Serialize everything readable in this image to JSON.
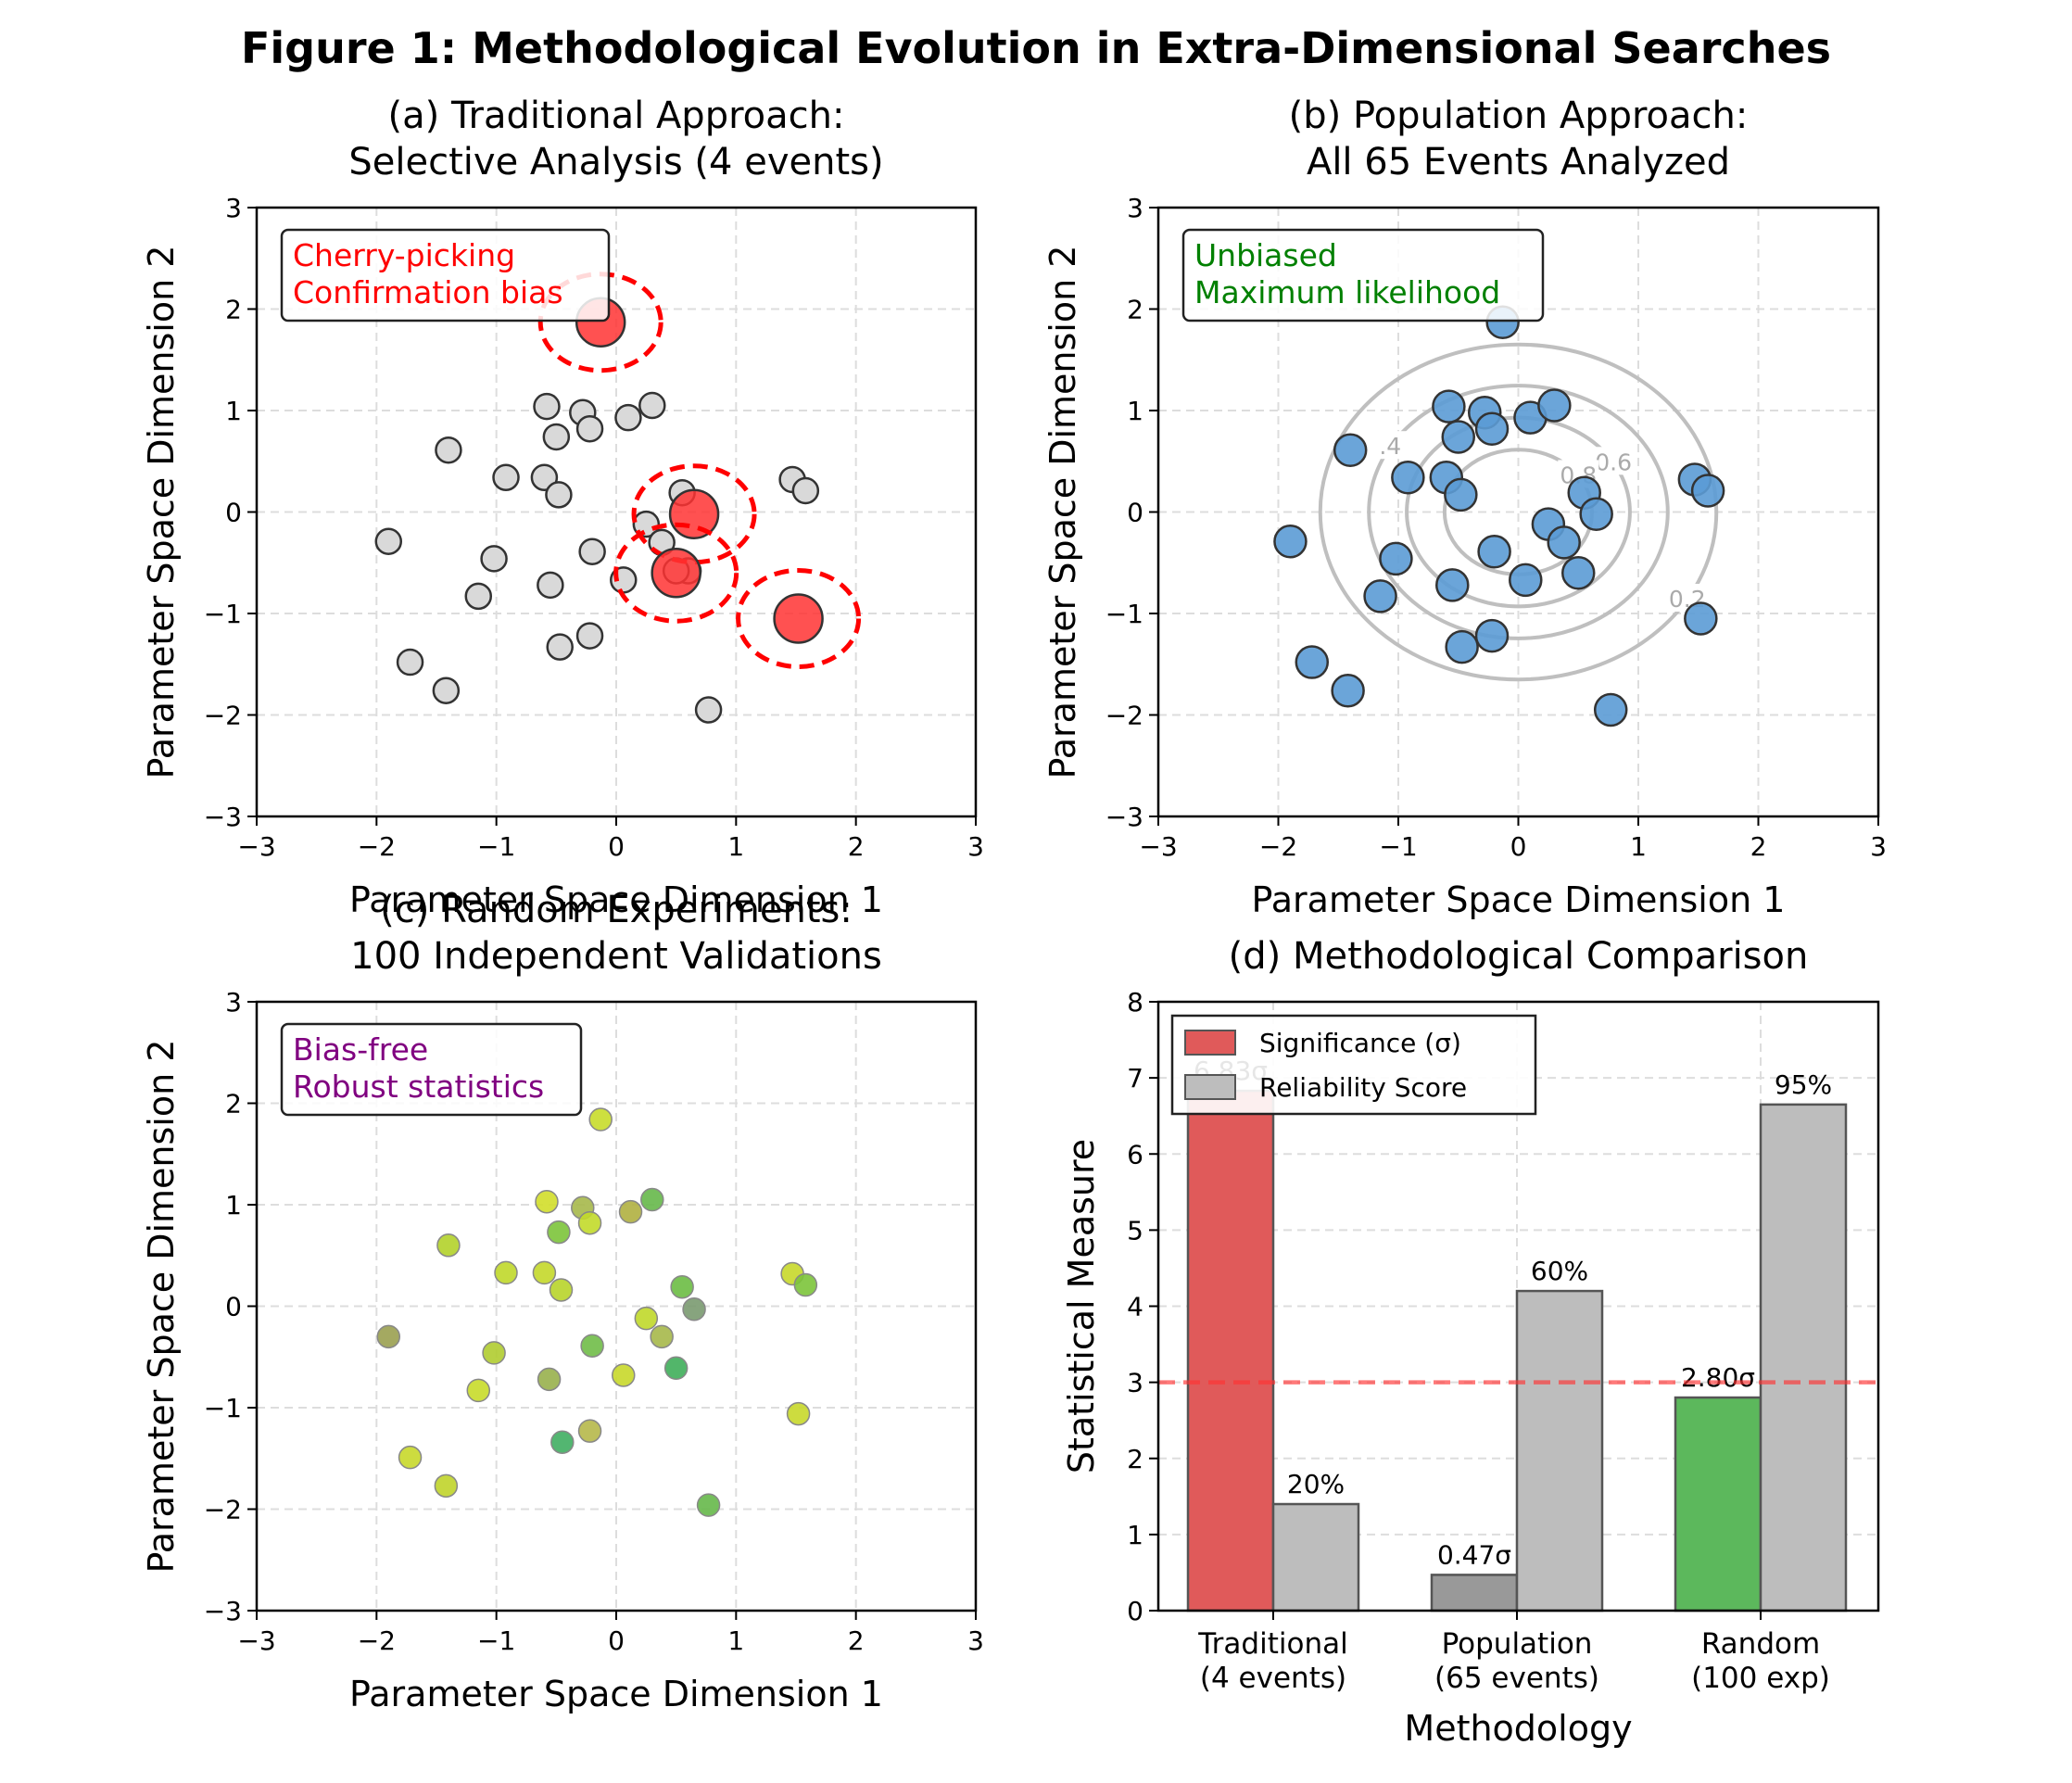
{
  "figure_title": "Figure 1: Methodological Evolution in Extra-Dimensional Searches",
  "colors": {
    "gray_point": "#d9d9d9",
    "red": "#ff3333",
    "blue": "#5b9bd5",
    "contour": "#bfbfbf",
    "sig_traditional": "#e05a5a",
    "sig_population": "#999999",
    "sig_random": "#5cb85c",
    "reliability": "#bdbdbd",
    "box_text_a": "#ff0000",
    "box_text_b": "#008000",
    "box_text_c": "#800080"
  },
  "chart_data": [
    {
      "id": "a",
      "type": "scatter",
      "title": "(a) Traditional Approach:\nSelective Analysis (4 events)",
      "xlabel": "Parameter Space Dimension 1",
      "ylabel": "Parameter Space Dimension 2",
      "xlim": [
        -3,
        3
      ],
      "ylim": [
        -3,
        3
      ],
      "xticks": [
        "−3",
        "−2",
        "−1",
        "0",
        "1",
        "2",
        "3"
      ],
      "yticks": [
        "−3",
        "−2",
        "−1",
        "0",
        "1",
        "2",
        "3"
      ],
      "grid": true,
      "annotation": [
        "Cherry-picking",
        "Confirmation bias"
      ],
      "background_points": [
        [
          -1.4,
          0.61
        ],
        [
          -0.92,
          0.34
        ],
        [
          -0.58,
          1.04
        ],
        [
          -0.5,
          0.74
        ],
        [
          -0.28,
          0.98
        ],
        [
          -0.22,
          0.82
        ],
        [
          0.1,
          0.93
        ],
        [
          0.3,
          1.05
        ],
        [
          -0.6,
          0.34
        ],
        [
          -0.48,
          0.17
        ],
        [
          0.55,
          0.19
        ],
        [
          1.47,
          0.32
        ],
        [
          1.58,
          0.21
        ],
        [
          -1.9,
          -0.29
        ],
        [
          -1.02,
          -0.46
        ],
        [
          -0.2,
          -0.39
        ],
        [
          0.25,
          -0.12
        ],
        [
          0.38,
          -0.3
        ],
        [
          -1.15,
          -0.83
        ],
        [
          -0.55,
          -0.72
        ],
        [
          0.06,
          -0.67
        ],
        [
          0.6,
          -0.58
        ],
        [
          -0.47,
          -1.33
        ],
        [
          -0.22,
          -1.22
        ],
        [
          -1.72,
          -1.48
        ],
        [
          -1.42,
          -1.76
        ],
        [
          0.77,
          -1.95
        ],
        [
          0.5,
          -0.58
        ]
      ],
      "selected_points": [
        [
          -0.13,
          1.87
        ],
        [
          0.65,
          -0.02
        ],
        [
          0.5,
          -0.6
        ],
        [
          1.52,
          -1.05
        ]
      ]
    },
    {
      "id": "b",
      "type": "scatter",
      "title": "(b) Population Approach:\nAll 65 Events Analyzed",
      "xlabel": "Parameter Space Dimension 1",
      "ylabel": "Parameter Space Dimension 2",
      "xlim": [
        -3,
        3
      ],
      "ylim": [
        -3,
        3
      ],
      "xticks": [
        "−3",
        "−2",
        "−1",
        "0",
        "1",
        "2",
        "3"
      ],
      "yticks": [
        "−3",
        "−2",
        "−1",
        "0",
        "1",
        "2",
        "3"
      ],
      "grid": true,
      "annotation": [
        "Unbiased",
        "Maximum likelihood"
      ],
      "contour_levels": [
        0.2,
        0.4,
        0.6,
        0.8
      ],
      "contour_labels": [
        "0.2",
        ".4",
        "0.6",
        "0.8"
      ],
      "points": [
        [
          -0.13,
          1.87
        ],
        [
          -1.4,
          0.61
        ],
        [
          -0.92,
          0.34
        ],
        [
          -0.58,
          1.04
        ],
        [
          -0.5,
          0.74
        ],
        [
          -0.28,
          0.98
        ],
        [
          -0.22,
          0.82
        ],
        [
          0.1,
          0.93
        ],
        [
          0.3,
          1.05
        ],
        [
          -0.6,
          0.34
        ],
        [
          -0.48,
          0.17
        ],
        [
          0.55,
          0.19
        ],
        [
          0.65,
          -0.02
        ],
        [
          1.47,
          0.32
        ],
        [
          1.58,
          0.21
        ],
        [
          -1.9,
          -0.29
        ],
        [
          -1.02,
          -0.46
        ],
        [
          -0.2,
          -0.39
        ],
        [
          0.25,
          -0.12
        ],
        [
          0.38,
          -0.3
        ],
        [
          -1.15,
          -0.83
        ],
        [
          -0.55,
          -0.72
        ],
        [
          0.06,
          -0.67
        ],
        [
          0.5,
          -0.6
        ],
        [
          -0.47,
          -1.33
        ],
        [
          -0.22,
          -1.22
        ],
        [
          -1.72,
          -1.48
        ],
        [
          -1.42,
          -1.76
        ],
        [
          0.77,
          -1.95
        ],
        [
          1.52,
          -1.05
        ]
      ]
    },
    {
      "id": "c",
      "type": "scatter",
      "title": "(c) Random Experiments:\n100 Independent Validations",
      "xlabel": "Parameter Space Dimension 1",
      "ylabel": "Parameter Space Dimension 2",
      "xlim": [
        -3,
        3
      ],
      "ylim": [
        -3,
        3
      ],
      "xticks": [
        "−3",
        "−2",
        "−1",
        "0",
        "1",
        "2",
        "3"
      ],
      "yticks": [
        "−3",
        "−2",
        "−1",
        "0",
        "1",
        "2",
        "3"
      ],
      "grid": true,
      "annotation": [
        "Bias-free",
        "Robust statistics"
      ],
      "points": [
        {
          "x": -0.13,
          "y": 1.84,
          "c": "#c8dc2a"
        },
        {
          "x": -1.4,
          "y": 0.6,
          "c": "#b3d22a"
        },
        {
          "x": -0.92,
          "y": 0.33,
          "c": "#c0d82a"
        },
        {
          "x": -0.58,
          "y": 1.03,
          "c": "#d2de2a"
        },
        {
          "x": -0.48,
          "y": 0.73,
          "c": "#7cc43a"
        },
        {
          "x": -0.28,
          "y": 0.97,
          "c": "#a6b84a"
        },
        {
          "x": -0.22,
          "y": 0.82,
          "c": "#c2da2a"
        },
        {
          "x": 0.12,
          "y": 0.93,
          "c": "#b0b040"
        },
        {
          "x": 0.3,
          "y": 1.05,
          "c": "#66b84a"
        },
        {
          "x": -0.6,
          "y": 0.33,
          "c": "#c4d82a"
        },
        {
          "x": -0.46,
          "y": 0.16,
          "c": "#b8d42a"
        },
        {
          "x": 0.55,
          "y": 0.19,
          "c": "#6cbc44"
        },
        {
          "x": 0.65,
          "y": -0.03,
          "c": "#7a9a70"
        },
        {
          "x": 1.47,
          "y": 0.32,
          "c": "#c8d82a"
        },
        {
          "x": 1.58,
          "y": 0.21,
          "c": "#7cc43a"
        },
        {
          "x": -1.9,
          "y": -0.3,
          "c": "#9aa050"
        },
        {
          "x": -1.02,
          "y": -0.46,
          "c": "#b0cc30"
        },
        {
          "x": -0.2,
          "y": -0.39,
          "c": "#70bc48"
        },
        {
          "x": 0.25,
          "y": -0.12,
          "c": "#c0d82a"
        },
        {
          "x": 0.38,
          "y": -0.3,
          "c": "#a6b84a"
        },
        {
          "x": -1.15,
          "y": -0.83,
          "c": "#c8dc2a"
        },
        {
          "x": -0.56,
          "y": -0.72,
          "c": "#98b04c"
        },
        {
          "x": 0.06,
          "y": -0.68,
          "c": "#c8d82a"
        },
        {
          "x": 0.5,
          "y": -0.61,
          "c": "#3fae5a"
        },
        {
          "x": -0.45,
          "y": -1.34,
          "c": "#40ae62"
        },
        {
          "x": -0.22,
          "y": -1.23,
          "c": "#b6b84a"
        },
        {
          "x": -1.72,
          "y": -1.49,
          "c": "#c8d82a"
        },
        {
          "x": -1.42,
          "y": -1.77,
          "c": "#c0d42a"
        },
        {
          "x": 0.77,
          "y": -1.96,
          "c": "#66b84a"
        },
        {
          "x": 1.52,
          "y": -1.06,
          "c": "#c8d82a"
        }
      ]
    },
    {
      "id": "d",
      "type": "bar",
      "title": "(d) Methodological Comparison",
      "xlabel": "Methodology",
      "ylabel": "Statistical Measure",
      "ylim": [
        0,
        8
      ],
      "yticks": [
        "0",
        "1",
        "2",
        "3",
        "4",
        "5",
        "6",
        "7",
        "8"
      ],
      "grid": true,
      "categories": [
        [
          "Traditional",
          "(4 events)"
        ],
        [
          "Population",
          "(65 events)"
        ],
        [
          "Random",
          "(100 exp)"
        ]
      ],
      "series": [
        {
          "name": "Significance (σ)",
          "values": [
            6.83,
            0.47,
            2.8
          ],
          "labels": [
            "6.83σ",
            "0.47σ",
            "2.80σ"
          ]
        },
        {
          "name": "Reliability Score",
          "values": [
            1.4,
            4.2,
            6.65
          ],
          "labels": [
            "20%",
            "60%",
            "95%"
          ]
        }
      ],
      "threshold": 3,
      "legend": "top-left"
    }
  ]
}
